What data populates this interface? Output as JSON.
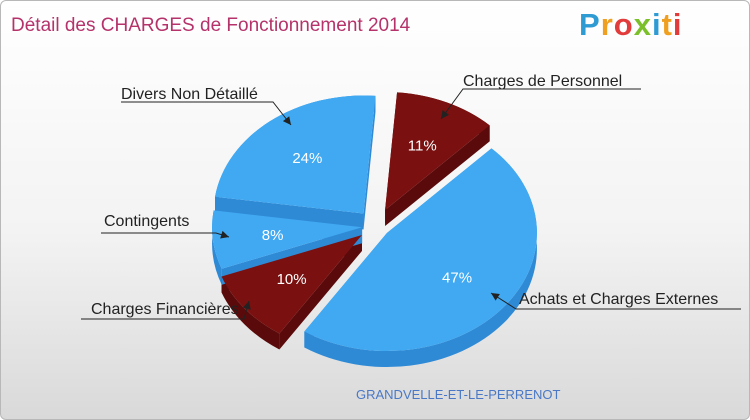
{
  "title": "Détail des CHARGES de Fonctionnement 2014",
  "logo": {
    "text": "Proxiti"
  },
  "footer": "GRANDVELLE-ET-LE-PERRENOT",
  "colors": {
    "blue": "#41a9f2",
    "blue_side": "#2f8ad6",
    "red": "#7a1010",
    "red_side": "#5a0a0a"
  },
  "chart_data": {
    "type": "pie",
    "title": "Détail des CHARGES de Fonctionnement 2014",
    "slices": [
      {
        "label": "Charges de Personnel",
        "value": 11,
        "pct_label": "11%",
        "color": "red"
      },
      {
        "label": "Achats et Charges Externes",
        "value": 47,
        "pct_label": "47%",
        "color": "blue"
      },
      {
        "label": "Charges Financières",
        "value": 10,
        "pct_label": "10%",
        "color": "red"
      },
      {
        "label": "Contingents",
        "value": 8,
        "pct_label": "8%",
        "color": "blue"
      },
      {
        "label": "Divers Non Détaillé",
        "value": 24,
        "pct_label": "24%",
        "color": "blue"
      }
    ]
  }
}
